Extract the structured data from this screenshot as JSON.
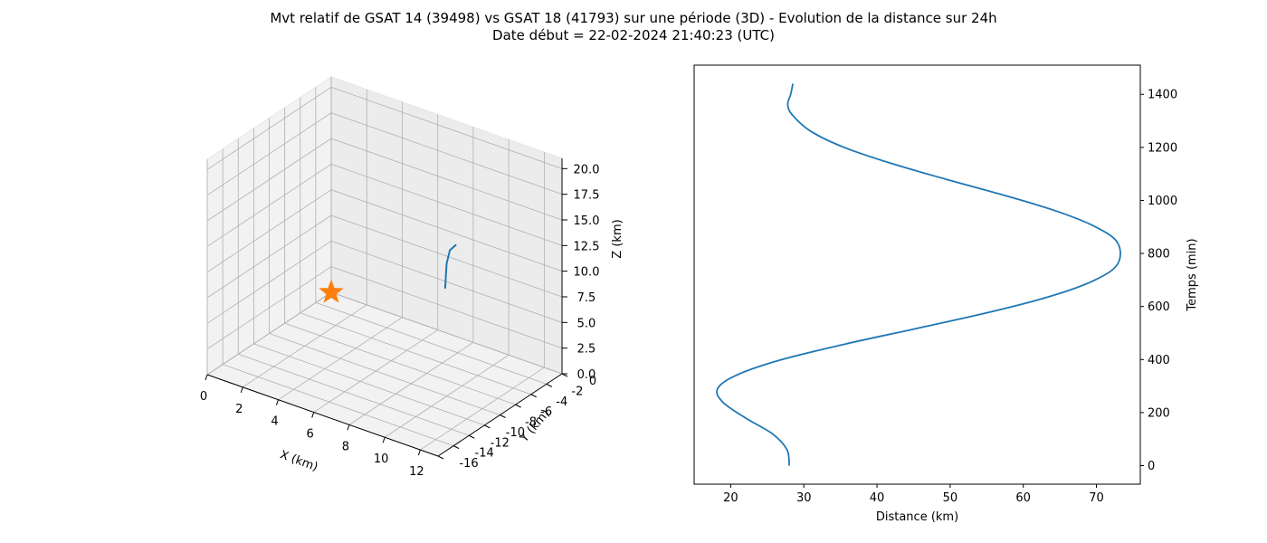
{
  "figure": {
    "title_line1": "Mvt relatif de GSAT 14 (39498) vs GSAT 18 (41793) sur une période (3D) - Evolution de la distance sur 24h",
    "title_line2": "Date début = 22-02-2024 21:40:23 (UTC)"
  },
  "chart_data": [
    {
      "type": "line3d",
      "xlabel": "X (km)",
      "ylabel": "Y (km)",
      "zlabel": "Z (km)",
      "xlim": [
        0,
        13
      ],
      "ylim": [
        -16,
        0
      ],
      "zlim": [
        0,
        21
      ],
      "x_ticks": [
        0,
        2,
        4,
        6,
        8,
        10,
        12
      ],
      "y_ticks": [
        0,
        -2,
        -4,
        -6,
        -8,
        -10,
        -12,
        -14,
        -16
      ],
      "z_ticks": [
        "0.0",
        "2.5",
        "5.0",
        "7.5",
        "10.0",
        "12.5",
        "15.0",
        "17.5",
        "20.0"
      ],
      "grid": true,
      "series": [
        {
          "kind": "line",
          "color": "#1f77b4",
          "points": [
            {
              "x": 6.9,
              "y": -1.1,
              "z": 5.2
            },
            {
              "x": 7.2,
              "y": -1.6,
              "z": 8.0
            },
            {
              "x": 7.6,
              "y": -2.1,
              "z": 9.8
            },
            {
              "x": 8.1,
              "y": -2.5,
              "z": 10.8
            }
          ]
        },
        {
          "kind": "marker",
          "marker": "star",
          "color": "#ff7f0e",
          "points": [
            {
              "x": 0,
              "y": 0,
              "z": 0
            }
          ]
        }
      ]
    },
    {
      "type": "line",
      "xlabel": "Distance (km)",
      "ylabel": "Temps (min)",
      "xlim": [
        15,
        76
      ],
      "ylim": [
        -70,
        1510
      ],
      "x_ticks": [
        20,
        30,
        40,
        50,
        60,
        70
      ],
      "y_ticks": [
        0,
        200,
        400,
        600,
        800,
        1000,
        1200,
        1400
      ],
      "y_axis_side": "right",
      "grid": false,
      "series": [
        {
          "color": "#1f77b4",
          "distance_km": [
            28.0,
            27.7,
            25.7,
            22.0,
            18.9,
            18.2,
            20.7,
            27.0,
            35.9,
            45.9,
            55.6,
            63.9,
            69.8,
            72.9,
            72.9,
            69.9,
            64.5,
            57.3,
            49.4,
            41.9,
            35.5,
            31.0,
            28.5,
            27.8,
            28.2,
            28.5
          ],
          "temps_min": [
            0,
            60,
            120,
            180,
            240,
            290,
            340,
            400,
            460,
            520,
            580,
            640,
            700,
            760,
            840,
            900,
            960,
            1020,
            1080,
            1140,
            1200,
            1260,
            1320,
            1360,
            1400,
            1440
          ]
        }
      ]
    }
  ]
}
